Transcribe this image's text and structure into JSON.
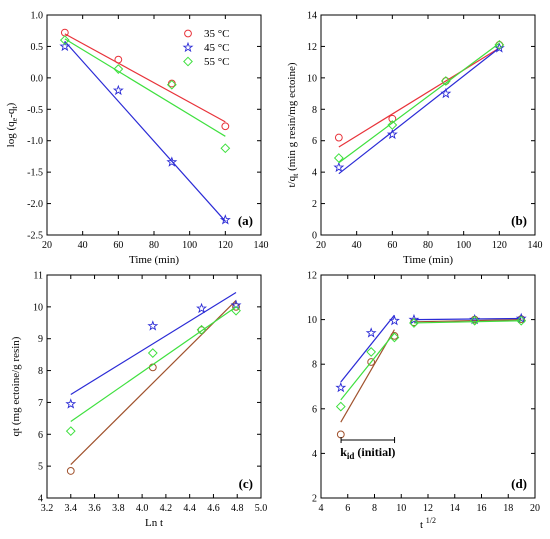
{
  "colors": {
    "s35": "#e8333a",
    "s45": "#2b2bd6",
    "s55": "#3fe03f",
    "brown": "#a0522d"
  },
  "chart_data": [
    {
      "type": "scatter",
      "panel_label": "(a)",
      "xlabel": "Time (min)",
      "ylabel": "log (qe-qt)",
      "ylabel_main": "log (q",
      "ylabel_sub1": "e",
      "ylabel_mid": "-q",
      "ylabel_sub2": "t",
      "ylabel_end": ")",
      "xlim": [
        20,
        140
      ],
      "ylim": [
        -2.5,
        1.0
      ],
      "xticks": [
        20,
        40,
        60,
        80,
        100,
        120,
        140
      ],
      "yticks": [
        -2.5,
        -2.0,
        -1.5,
        -1.0,
        -0.5,
        0.0,
        0.5,
        1.0
      ],
      "ytick_labels": [
        "-2.5",
        "-2.0",
        "-1.5",
        "-1.0",
        "-0.5",
        "0.0",
        "0.5",
        "1.0"
      ],
      "legend": {
        "position": "top-right"
      },
      "series": [
        {
          "name": "35 °C",
          "color": "#e8333a",
          "marker": "circle",
          "x": [
            30,
            60,
            90,
            120
          ],
          "y": [
            0.72,
            0.29,
            -0.09,
            -0.77
          ],
          "fit": [
            [
              30,
              0.7
            ],
            [
              120,
              -0.7
            ]
          ]
        },
        {
          "name": "45 °C",
          "color": "#2b2bd6",
          "marker": "star",
          "x": [
            30,
            60,
            90,
            120
          ],
          "y": [
            0.5,
            -0.2,
            -1.34,
            -2.26
          ],
          "fit": [
            [
              30,
              0.58
            ],
            [
              120,
              -2.28
            ]
          ]
        },
        {
          "name": "55 °C",
          "color": "#3fe03f",
          "marker": "diamond",
          "x": [
            30,
            60,
            90,
            120
          ],
          "y": [
            0.6,
            0.14,
            -0.11,
            -1.12
          ],
          "fit": [
            [
              30,
              0.62
            ],
            [
              120,
              -0.93
            ]
          ]
        }
      ]
    },
    {
      "type": "scatter",
      "panel_label": "(b)",
      "xlabel": "Time (min)",
      "ylabel": "t/qt (min g resin/mg ectoine)",
      "ylabel_main": "t/q",
      "ylabel_sub": "t",
      "ylabel_end": " (min g resin/mg ectoine)",
      "xlim": [
        20,
        140
      ],
      "ylim": [
        0,
        14
      ],
      "xticks": [
        20,
        40,
        60,
        80,
        100,
        120,
        140
      ],
      "yticks": [
        0,
        2,
        4,
        6,
        8,
        10,
        12,
        14
      ],
      "series": [
        {
          "name": "35 °C",
          "color": "#e8333a",
          "marker": "circle",
          "x": [
            30,
            60,
            90,
            120
          ],
          "y": [
            6.2,
            7.4,
            9.8,
            12.1
          ],
          "fit": [
            [
              30,
              5.6
            ],
            [
              120,
              11.9
            ]
          ]
        },
        {
          "name": "45 °C",
          "color": "#2b2bd6",
          "marker": "star",
          "x": [
            30,
            60,
            90,
            120
          ],
          "y": [
            4.3,
            6.4,
            9.0,
            11.9
          ],
          "fit": [
            [
              30,
              3.9
            ],
            [
              120,
              11.9
            ]
          ]
        },
        {
          "name": "55 °C",
          "color": "#3fe03f",
          "marker": "diamond",
          "x": [
            30,
            60,
            90,
            120
          ],
          "y": [
            4.9,
            7.0,
            9.8,
            12.1
          ],
          "fit": [
            [
              30,
              4.6
            ],
            [
              120,
              12.2
            ]
          ]
        }
      ]
    },
    {
      "type": "scatter",
      "panel_label": "(c)",
      "xlabel": "Ln t",
      "ylabel": "qt (mg ectoine/g resin)",
      "xlim": [
        3.2,
        5.0
      ],
      "ylim": [
        4,
        11
      ],
      "xticks": [
        3.2,
        3.4,
        3.6,
        3.8,
        4.0,
        4.2,
        4.4,
        4.6,
        4.8,
        5.0
      ],
      "xtick_labels": [
        "3.2",
        "3.4",
        "3.6",
        "3.8",
        "4.0",
        "4.2",
        "4.4",
        "4.6",
        "4.8",
        "5.0"
      ],
      "yticks": [
        4,
        5,
        6,
        7,
        8,
        9,
        10,
        11
      ],
      "series": [
        {
          "name": "35 °C",
          "color": "#a0522d",
          "marker": "circle",
          "x": [
            3.4,
            4.09,
            4.5,
            4.79
          ],
          "y": [
            4.85,
            8.1,
            9.27,
            10.0
          ],
          "fit": [
            [
              3.4,
              5.05
            ],
            [
              4.79,
              10.2
            ]
          ]
        },
        {
          "name": "45 °C",
          "color": "#2b2bd6",
          "marker": "star",
          "x": [
            3.4,
            4.09,
            4.5,
            4.79
          ],
          "y": [
            6.95,
            9.4,
            9.95,
            10.05
          ],
          "fit": [
            [
              3.4,
              7.25
            ],
            [
              4.79,
              10.45
            ]
          ]
        },
        {
          "name": "55 °C",
          "color": "#3fe03f",
          "marker": "diamond",
          "x": [
            3.4,
            4.09,
            4.5,
            4.79
          ],
          "y": [
            6.1,
            8.55,
            9.28,
            9.88
          ],
          "fit": [
            [
              3.4,
              6.4
            ],
            [
              4.79,
              10.0
            ]
          ]
        }
      ]
    },
    {
      "type": "scatter",
      "panel_label": "(d)",
      "xlabel": "t 1/2",
      "xlabel_main": "t",
      "xlabel_sup": "1/2",
      "ylabel": "",
      "xlim": [
        4,
        20
      ],
      "ylim": [
        2,
        12
      ],
      "xticks": [
        4,
        6,
        8,
        10,
        12,
        14,
        16,
        18,
        20
      ],
      "yticks": [
        2,
        4,
        6,
        8,
        10,
        12
      ],
      "annotation": {
        "main": "k",
        "sub": "id",
        "rest": " (initial)",
        "bracket_x": [
          5.5,
          9.5
        ],
        "bracket_y": 4.6
      },
      "series": [
        {
          "name": "35 °C",
          "color": "#a0522d",
          "marker": "circle",
          "x": [
            5.48,
            7.75,
            9.49,
            10.95,
            15.49,
            18.97
          ],
          "y": [
            4.85,
            8.1,
            9.27,
            9.88,
            10.0,
            10.02
          ],
          "fit": [
            [
              5.48,
              5.4
            ],
            [
              9.49,
              9.55
            ]
          ],
          "plateau": [
            [
              10.95,
              9.9
            ],
            [
              18.97,
              10.0
            ]
          ]
        },
        {
          "name": "45 °C",
          "color": "#2b2bd6",
          "marker": "star",
          "x": [
            5.48,
            7.75,
            9.49,
            10.95,
            15.49,
            18.97
          ],
          "y": [
            6.95,
            9.4,
            9.95,
            10.0,
            10.0,
            10.05
          ],
          "fit": [
            [
              5.48,
              7.2
            ],
            [
              9.49,
              10.2
            ]
          ],
          "plateau": [
            [
              10.95,
              10.0
            ],
            [
              18.97,
              10.05
            ]
          ]
        },
        {
          "name": "55 °C",
          "color": "#3fe03f",
          "marker": "diamond",
          "x": [
            5.48,
            7.75,
            9.49,
            10.95,
            15.49,
            18.97
          ],
          "y": [
            6.1,
            8.55,
            9.2,
            9.85,
            9.95,
            9.95
          ],
          "fit": [
            [
              5.48,
              6.4
            ],
            [
              9.49,
              9.4
            ]
          ],
          "plateau": [
            [
              10.95,
              9.85
            ],
            [
              18.97,
              9.95
            ]
          ]
        }
      ]
    }
  ]
}
